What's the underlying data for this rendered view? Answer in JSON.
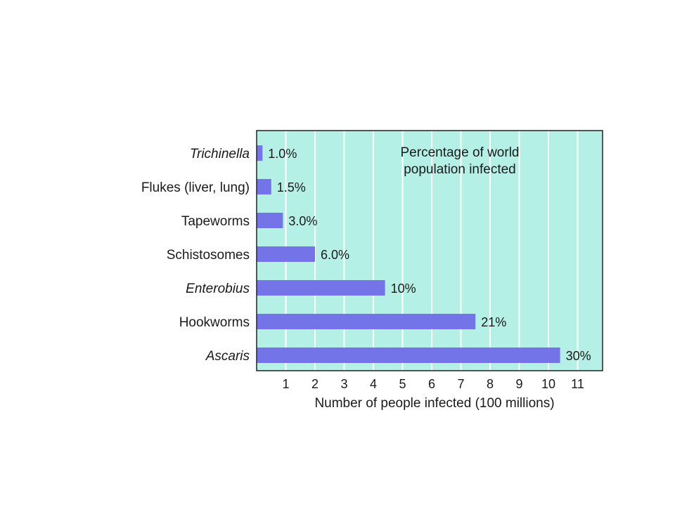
{
  "chart_data": {
    "type": "bar",
    "orientation": "horizontal",
    "title": "",
    "annotation": "Percentage of world population infected",
    "xlabel": "Number of people infected (100 millions)",
    "ylabel": "",
    "xlim": [
      0,
      12
    ],
    "x_ticks": [
      1,
      2,
      3,
      4,
      5,
      6,
      7,
      8,
      9,
      10,
      11
    ],
    "grid": true,
    "categories": [
      {
        "label": "Trichinella",
        "italic": true
      },
      {
        "label": "Flukes (liver, lung)",
        "italic": false
      },
      {
        "label": "Tapeworms",
        "italic": false
      },
      {
        "label": "Schistosomes",
        "italic": false
      },
      {
        "label": "Enterobius",
        "italic": true
      },
      {
        "label": "Hookworms",
        "italic": false
      },
      {
        "label": "Ascaris",
        "italic": true
      }
    ],
    "values": [
      0.2,
      0.5,
      0.9,
      2.0,
      4.4,
      7.5,
      10.4
    ],
    "data_labels": [
      "1.0%",
      "1.5%",
      "3.0%",
      "6.0%",
      "10%",
      "21%",
      "30%"
    ],
    "colors": {
      "plot_background": "#b5f0e6",
      "bar": "#7474e8",
      "gridline": "#ffffff",
      "frame": "#222222",
      "text": "#1a1a1a"
    }
  }
}
